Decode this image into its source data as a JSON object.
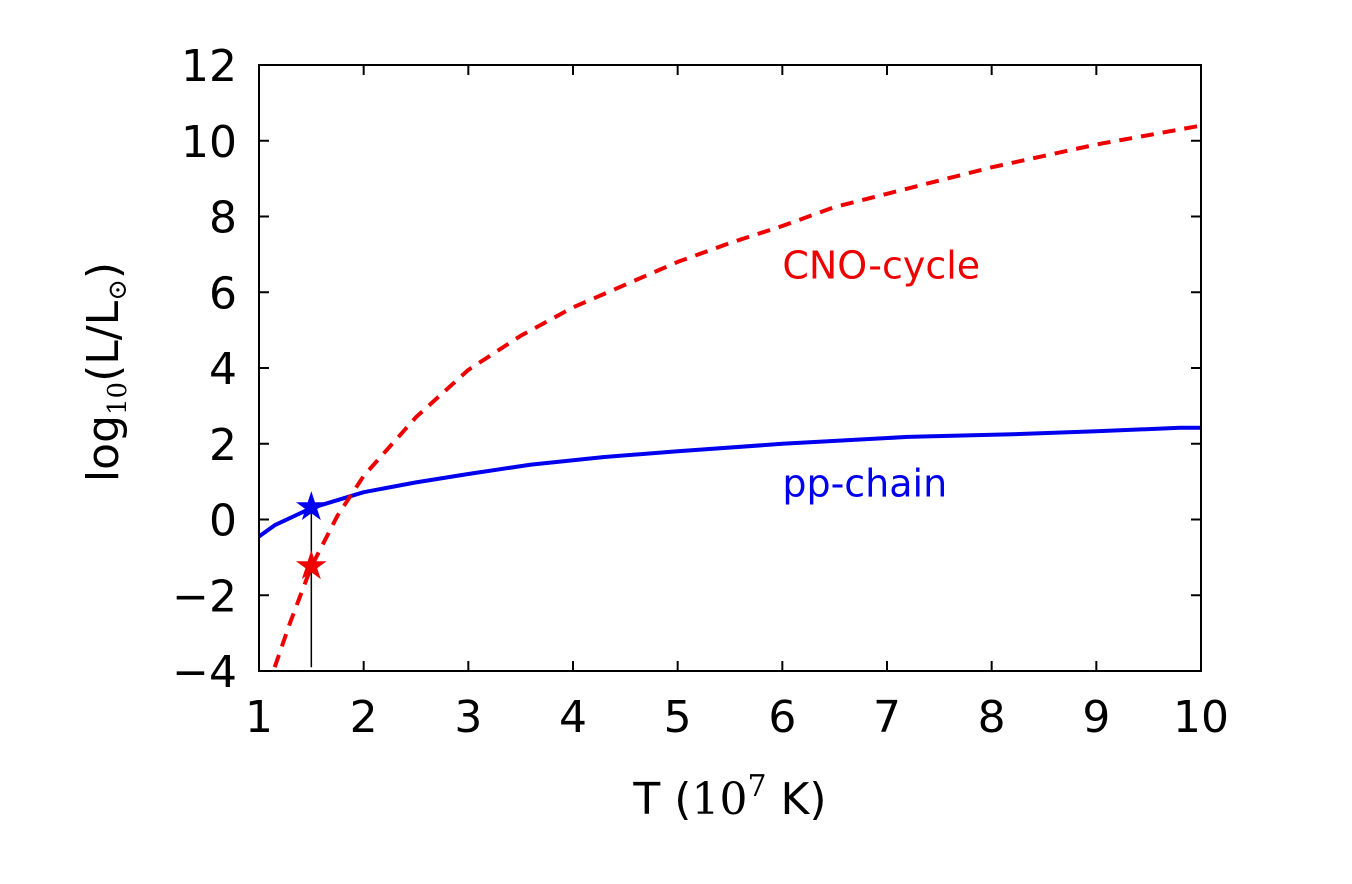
{
  "chart_data": {
    "type": "line",
    "xlabel": {
      "prefix": "T (",
      "base": "10",
      "exponent": "7",
      "suffix": " K)"
    },
    "ylabel": {
      "prefix": "log",
      "subscript": "10",
      "middle": "(L/L",
      "sun_subscript": "⊙",
      "suffix": ")"
    },
    "xlim": [
      1,
      10
    ],
    "ylim": [
      -4,
      12
    ],
    "x_ticks": [
      1,
      2,
      3,
      4,
      5,
      6,
      7,
      8,
      9,
      10
    ],
    "x_tick_labels": [
      "1",
      "2",
      "3",
      "4",
      "5",
      "6",
      "7",
      "8",
      "9",
      "10"
    ],
    "y_ticks": [
      -4,
      -2,
      0,
      2,
      4,
      6,
      8,
      10,
      12
    ],
    "y_tick_labels": [
      "−4",
      "−2",
      "0",
      "2",
      "4",
      "6",
      "8",
      "10",
      "12"
    ],
    "grid": false,
    "series": [
      {
        "name": "pp-chain",
        "color": "#0000ee",
        "style": "solid",
        "x": [
          1.0,
          1.15,
          1.5,
          2.0,
          2.5,
          3.0,
          3.6,
          4.3,
          5.0,
          6.0,
          7.2,
          8.2,
          9.0,
          9.8,
          10.0
        ],
        "y": [
          -0.45,
          -0.15,
          0.3,
          0.72,
          0.98,
          1.2,
          1.45,
          1.65,
          1.8,
          2.0,
          2.18,
          2.25,
          2.33,
          2.42,
          2.42
        ]
      },
      {
        "name": "CNO-cycle",
        "color": "#ee0000",
        "style": "dashed",
        "x": [
          1.15,
          1.3,
          1.5,
          1.75,
          2.0,
          2.5,
          3.0,
          3.5,
          4.0,
          4.5,
          5.0,
          5.5,
          6.0,
          6.5,
          7.0,
          7.5,
          8.0,
          8.5,
          9.0,
          9.5,
          10.0
        ],
        "y": [
          -3.9,
          -2.7,
          -1.25,
          0.1,
          1.15,
          2.7,
          3.95,
          4.85,
          5.6,
          6.2,
          6.8,
          7.3,
          7.75,
          8.25,
          8.6,
          8.95,
          9.3,
          9.6,
          9.9,
          10.15,
          10.4
        ]
      }
    ],
    "markers": [
      {
        "series": "pp-chain",
        "x": 1.5,
        "y": 0.35,
        "color": "#0000ee",
        "symbol": "★"
      },
      {
        "series": "CNO-cycle",
        "x": 1.5,
        "y": -1.2,
        "color": "#ee0000",
        "symbol": "★"
      }
    ],
    "vertical_line": {
      "x": 1.5,
      "y_from": -3.9,
      "y_to": 0.35,
      "color": "#000000"
    },
    "annotations": [
      {
        "text": "CNO-cycle",
        "x": 6.0,
        "y": 6.7,
        "color": "#ee0000"
      },
      {
        "text": "pp-chain",
        "x": 6.0,
        "y": 0.95,
        "color": "#0000ee"
      }
    ]
  }
}
